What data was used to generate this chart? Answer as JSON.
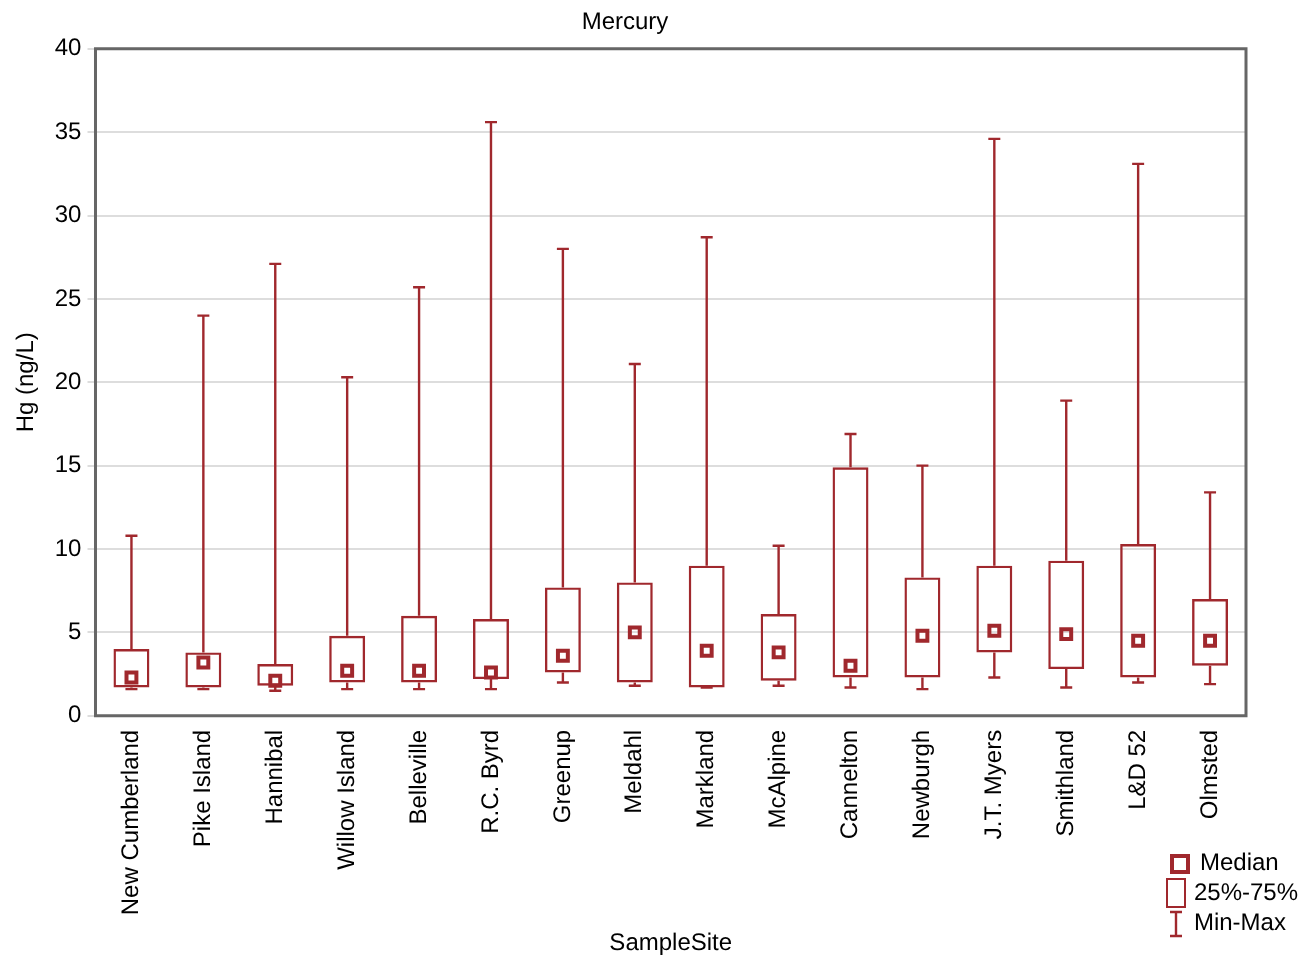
{
  "chart_data": {
    "type": "box",
    "title": "Mercury",
    "xlabel": "SampleSite",
    "ylabel": "Hg (ng/L)",
    "categories": [
      "New Cumberland",
      "Pike Island",
      "Hannibal",
      "Willow Island",
      "Belleville",
      "R.C. Byrd",
      "Greenup",
      "Meldahl",
      "Markland",
      "McAlpine",
      "Cannelton",
      "Newburgh",
      "J.T. Myers",
      "Smithland",
      "L&D 52",
      "Olmsted"
    ],
    "boxes": [
      {
        "low": 1.6,
        "q1": 1.7,
        "median": 2.3,
        "q3": 4.0,
        "high": 10.8
      },
      {
        "low": 1.6,
        "q1": 1.7,
        "median": 3.2,
        "q3": 3.8,
        "high": 24.0
      },
      {
        "low": 1.5,
        "q1": 1.8,
        "median": 2.1,
        "q3": 3.1,
        "high": 27.1
      },
      {
        "low": 1.6,
        "q1": 2.0,
        "median": 2.7,
        "q3": 4.8,
        "high": 20.3
      },
      {
        "low": 1.6,
        "q1": 2.0,
        "median": 2.7,
        "q3": 6.0,
        "high": 25.7
      },
      {
        "low": 1.6,
        "q1": 2.2,
        "median": 2.6,
        "q3": 5.8,
        "high": 35.6
      },
      {
        "low": 2.0,
        "q1": 2.6,
        "median": 3.6,
        "q3": 7.7,
        "high": 28.0
      },
      {
        "low": 1.8,
        "q1": 2.0,
        "median": 5.0,
        "q3": 8.0,
        "high": 21.1
      },
      {
        "low": 1.7,
        "q1": 1.7,
        "median": 3.9,
        "q3": 9.0,
        "high": 28.7
      },
      {
        "low": 1.8,
        "q1": 2.1,
        "median": 3.8,
        "q3": 6.1,
        "high": 10.2
      },
      {
        "low": 1.7,
        "q1": 2.3,
        "median": 3.0,
        "q3": 14.9,
        "high": 16.9
      },
      {
        "low": 1.6,
        "q1": 2.3,
        "median": 4.8,
        "q3": 8.3,
        "high": 15.0
      },
      {
        "low": 2.3,
        "q1": 3.8,
        "median": 5.1,
        "q3": 9.0,
        "high": 34.6
      },
      {
        "low": 1.7,
        "q1": 2.8,
        "median": 4.9,
        "q3": 9.3,
        "high": 18.9
      },
      {
        "low": 2.0,
        "q1": 2.3,
        "median": 4.5,
        "q3": 10.3,
        "high": 33.1
      },
      {
        "low": 1.9,
        "q1": 3.0,
        "median": 4.5,
        "q3": 7.0,
        "high": 13.4
      }
    ],
    "color": "#a0282d",
    "ylim": [
      0,
      40
    ],
    "yticks": [
      0,
      5,
      10,
      15,
      20,
      25,
      30,
      35,
      40
    ],
    "grid": "y",
    "annotations": [
      "Median",
      "25%-75%",
      "Min-Max"
    ]
  }
}
